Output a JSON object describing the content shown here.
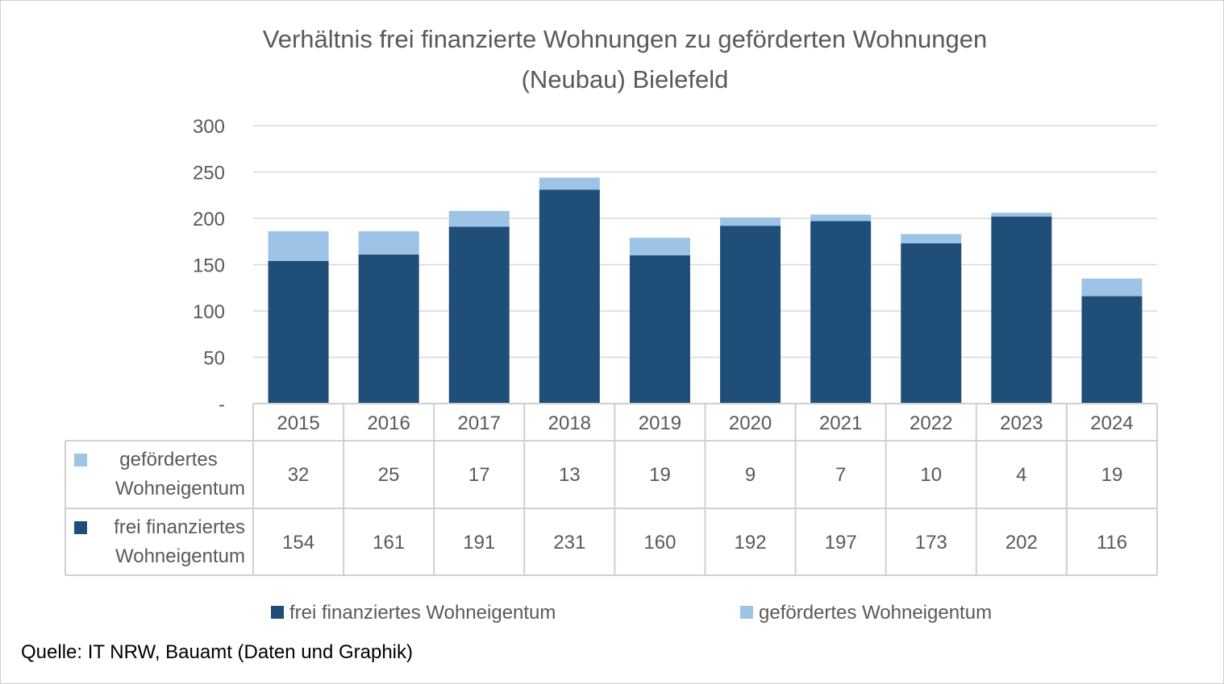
{
  "chart_data": {
    "type": "bar",
    "stacked": true,
    "title": "Verhältnis frei finanzierte Wohnungen zu geförderten Wohnungen (Neubau) Bielefeld",
    "title_lines": [
      "Verhältnis frei finanzierte Wohnungen zu geförderten Wohnungen",
      "(Neubau) Bielefeld"
    ],
    "categories": [
      "2015",
      "2016",
      "2017",
      "2018",
      "2019",
      "2020",
      "2021",
      "2022",
      "2023",
      "2024"
    ],
    "series": [
      {
        "name": "frei finanziertes Wohneigentum",
        "table_label": [
          "frei finanziertes",
          "Wohneigentum"
        ],
        "color": "#1F4E79",
        "values": [
          154,
          161,
          191,
          231,
          160,
          192,
          197,
          173,
          202,
          116
        ]
      },
      {
        "name": "gefördertes Wohneigentum",
        "table_label": [
          "gefördertes",
          "Wohneigentum"
        ],
        "color": "#9DC3E6",
        "values": [
          32,
          25,
          17,
          13,
          19,
          9,
          7,
          10,
          4,
          19
        ]
      }
    ],
    "ylim": [
      0,
      300
    ],
    "yticks": [
      0,
      50,
      100,
      150,
      200,
      250,
      300
    ],
    "ytick_labels": [
      "-",
      "50",
      "100",
      "150",
      "200",
      "250",
      "300"
    ],
    "grid": true,
    "data_table": true,
    "legend_position": "bottom",
    "xlabel": "",
    "ylabel": ""
  },
  "source": "Quelle: IT NRW, Bauamt (Daten und Graphik)"
}
